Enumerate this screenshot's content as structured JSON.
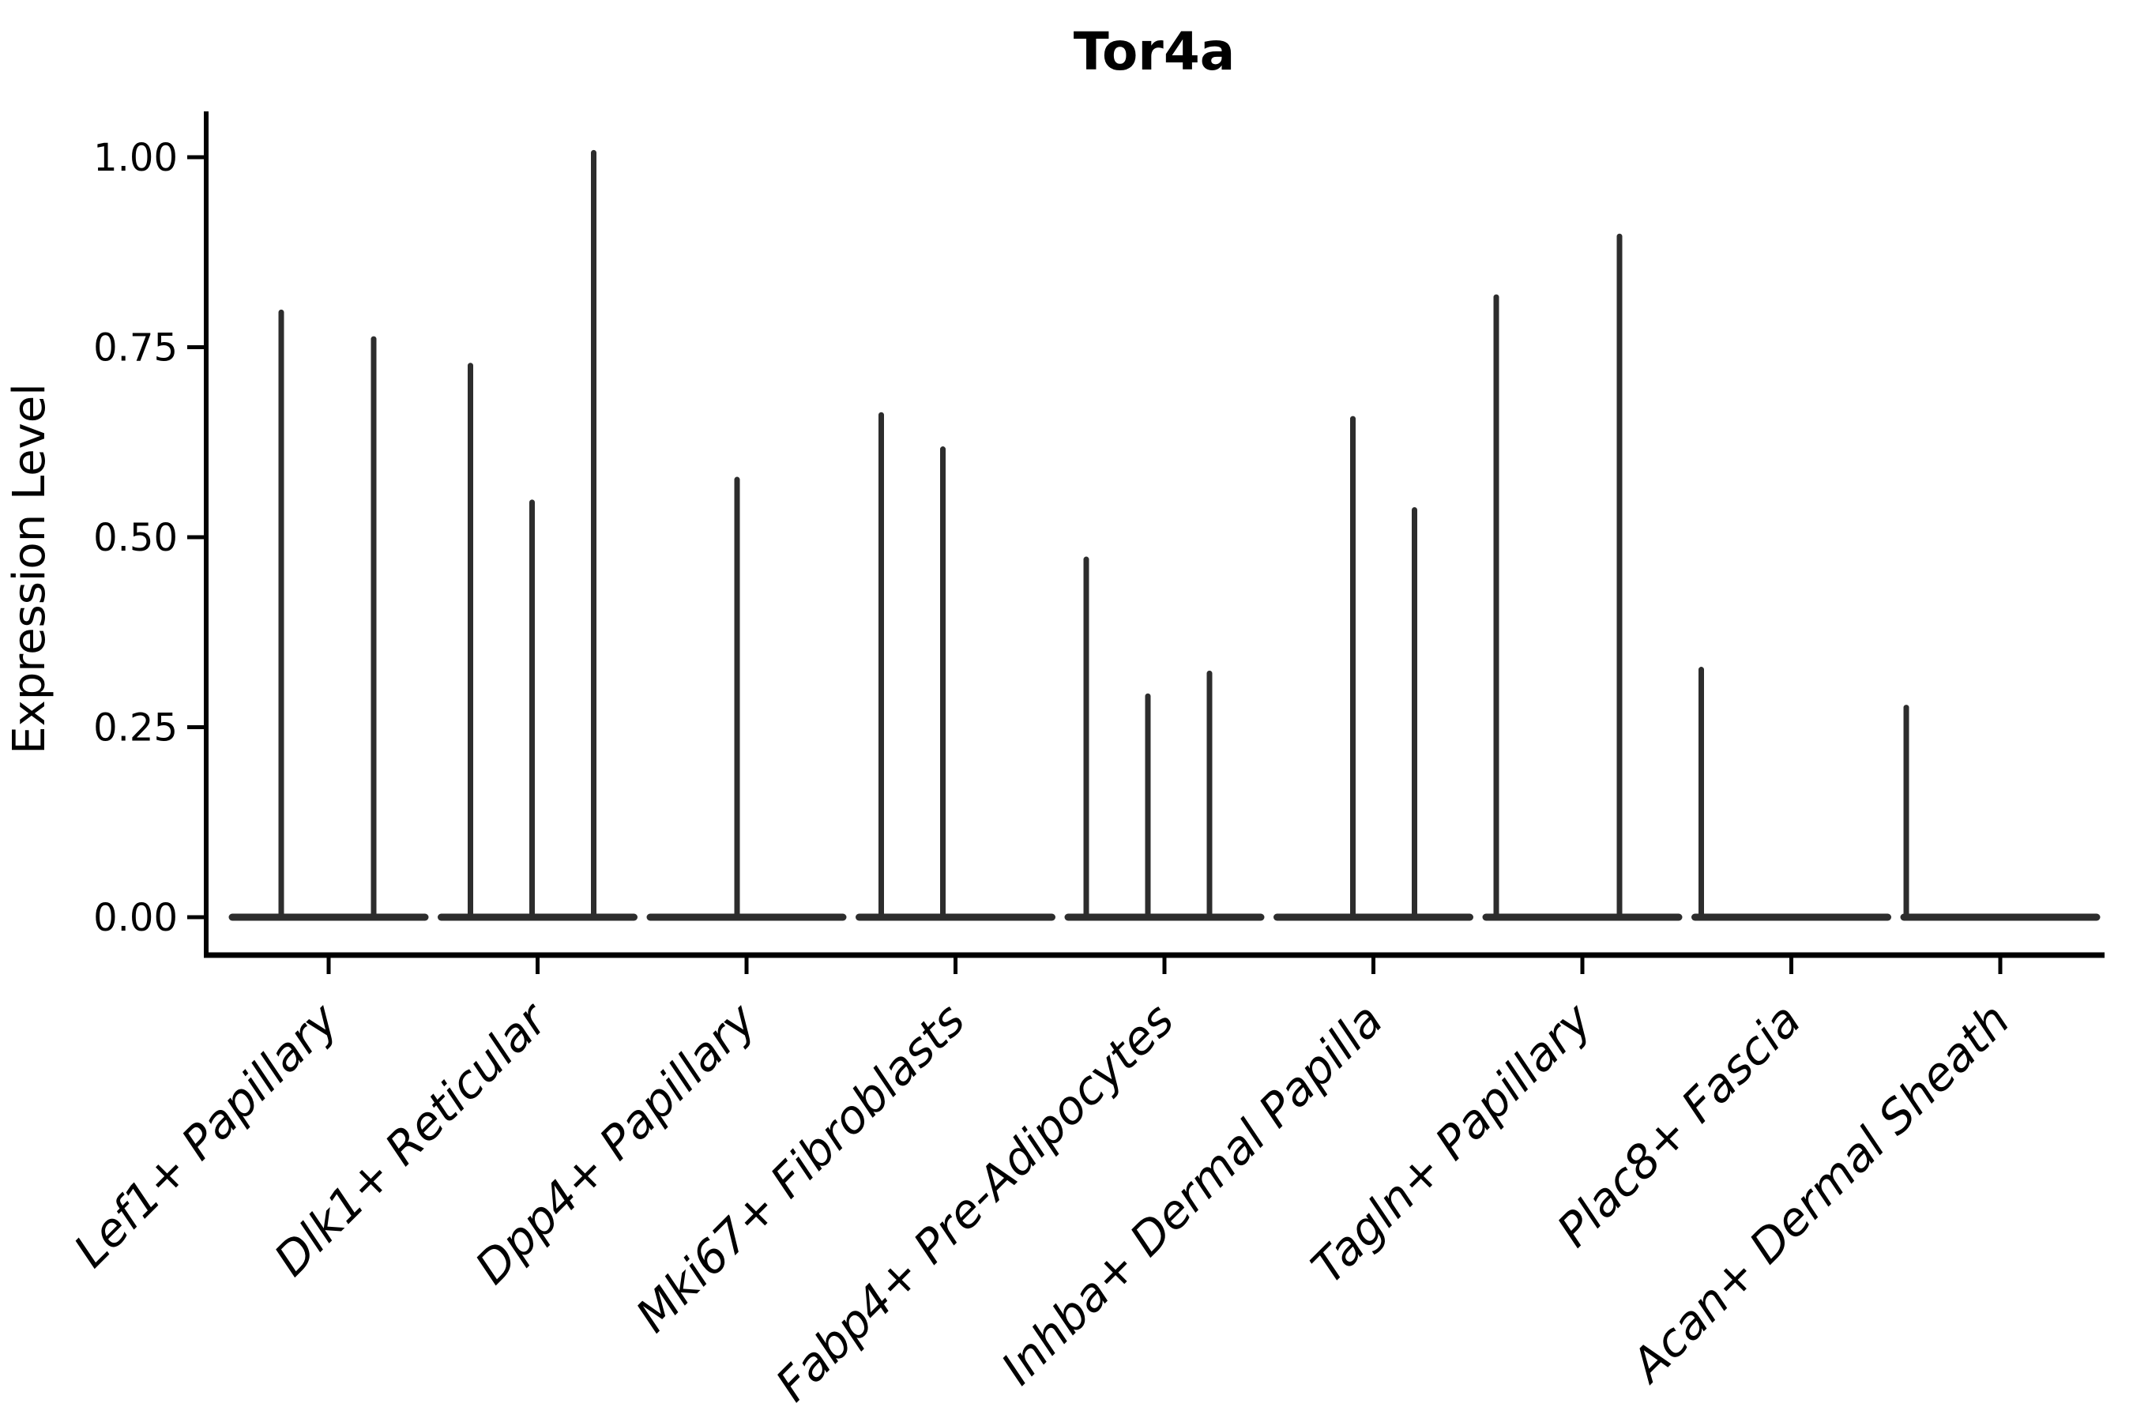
{
  "figure": {
    "background_color": "#ffffff",
    "axis_color": "#000000",
    "violin_color": "#2d2d2d"
  },
  "chart_data": {
    "type": "violin",
    "title": "Tor4a",
    "xlabel": "",
    "ylabel": "Expression Level",
    "ylim": [
      0,
      1.06
    ],
    "yticks": [
      0.0,
      0.25,
      0.5,
      0.75,
      1.0
    ],
    "ytick_labels": [
      "0.00",
      "0.25",
      "0.50",
      "0.75",
      "1.00"
    ],
    "grid": false,
    "legend": "none",
    "categories": [
      "Lef1+ Papillary",
      "Dlk1+ Reticular",
      "Dpp4+ Papillary",
      "Mki67+ Fibroblasts",
      "Fabp4+ Pre-Adipocytes",
      "Inhba+ Dermal Papilla",
      "Tagln+ Papillary",
      "Plac8+ Fascia",
      "Acan+ Dermal Sheath"
    ],
    "series": [
      {
        "name": "Lef1+ Papillary",
        "peaks": [
          {
            "offset": -60,
            "value": 0.8
          },
          {
            "offset": 57,
            "value": 0.765
          }
        ]
      },
      {
        "name": "Dlk1+ Reticular",
        "peaks": [
          {
            "offset": -85,
            "value": 0.73
          },
          {
            "offset": -7,
            "value": 0.55
          },
          {
            "offset": 71,
            "value": 1.01
          }
        ]
      },
      {
        "name": "Dpp4+ Papillary",
        "peaks": [
          {
            "offset": -12,
            "value": 0.58
          }
        ]
      },
      {
        "name": "Mki67+ Fibroblasts",
        "peaks": [
          {
            "offset": -94,
            "value": 0.665
          },
          {
            "offset": -16,
            "value": 0.62
          }
        ]
      },
      {
        "name": "Fabp4+ Pre-Adipocytes",
        "peaks": [
          {
            "offset": -99,
            "value": 0.475
          },
          {
            "offset": -21,
            "value": 0.295
          },
          {
            "offset": 57,
            "value": 0.325
          }
        ]
      },
      {
        "name": "Inhba+ Dermal Papilla",
        "peaks": [
          {
            "offset": -26,
            "value": 0.66
          },
          {
            "offset": 52,
            "value": 0.54
          }
        ]
      },
      {
        "name": "Tagln+ Papillary",
        "peaks": [
          {
            "offset": -109,
            "value": 0.82
          },
          {
            "offset": 47,
            "value": 0.9
          }
        ]
      },
      {
        "name": "Plac8+ Fascia",
        "peaks": [
          {
            "offset": -114,
            "value": 0.33
          }
        ]
      },
      {
        "name": "Acan+ Dermal Sheath",
        "peaks": [
          {
            "offset": -119,
            "value": 0.28
          }
        ]
      }
    ]
  }
}
